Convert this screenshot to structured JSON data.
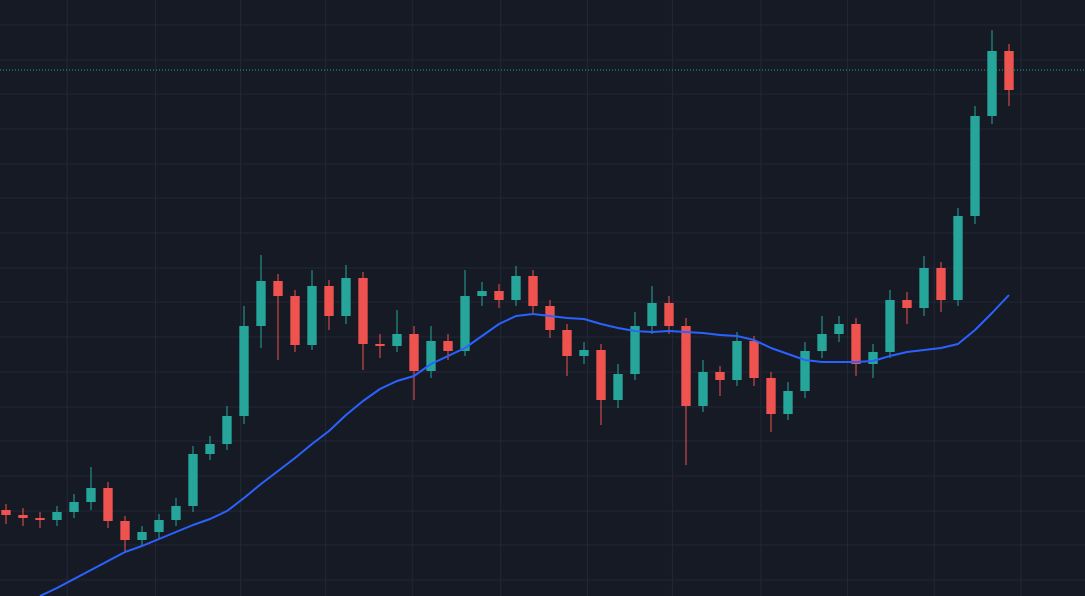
{
  "chart_data": {
    "type": "candlestick",
    "background": "#161a25",
    "grid": true,
    "grid_color": "#232735",
    "up_color": "#26a69a",
    "down_color": "#ef5350",
    "xlim": [
      -0.353,
      63.47
    ],
    "ylim": [
      0,
      596
    ],
    "xticks": [
      3.6,
      8.8,
      13.8,
      18.8,
      23.9,
      29.1,
      34.2,
      39.2,
      44.4,
      49.5,
      54.6,
      59.7
    ],
    "yticks": [
      571,
      536,
      502,
      467,
      432,
      398,
      363,
      328,
      294,
      259,
      224,
      189,
      155,
      120,
      85,
      51,
      16
    ],
    "open": [
      86,
      81,
      78,
      76,
      84,
      94,
      108,
      75,
      56,
      64,
      76,
      90,
      142,
      152,
      180,
      270,
      315,
      300,
      251,
      310,
      280,
      318,
      252,
      250,
      262,
      225,
      255,
      245,
      300,
      305,
      296,
      320,
      290,
      266,
      240,
      246,
      196,
      222,
      270,
      293,
      270,
      190,
      224,
      216,
      255,
      218,
      182,
      205,
      245,
      262,
      272,
      232,
      244,
      296,
      288,
      328,
      296,
      380,
      480,
      545
    ],
    "high": [
      92,
      88,
      84,
      90,
      102,
      129,
      114,
      80,
      70,
      82,
      98,
      150,
      160,
      190,
      290,
      341,
      322,
      306,
      326,
      316,
      331,
      324,
      262,
      286,
      270,
      270,
      262,
      326,
      314,
      312,
      330,
      326,
      296,
      272,
      254,
      252,
      232,
      284,
      310,
      300,
      278,
      236,
      230,
      264,
      260,
      224,
      214,
      254,
      280,
      280,
      278,
      252,
      306,
      304,
      340,
      334,
      388,
      490,
      566,
      552
    ],
    "low": [
      72,
      70,
      68,
      70,
      78,
      86,
      68,
      44,
      50,
      58,
      70,
      84,
      136,
      146,
      172,
      248,
      236,
      244,
      246,
      266,
      272,
      226,
      238,
      244,
      196,
      218,
      236,
      240,
      290,
      288,
      290,
      282,
      258,
      220,
      232,
      171,
      188,
      216,
      262,
      262,
      131,
      184,
      200,
      210,
      210,
      164,
      176,
      198,
      238,
      254,
      220,
      218,
      238,
      272,
      280,
      284,
      290,
      372,
      472,
      490
    ],
    "close": [
      81,
      78,
      76,
      84,
      94,
      108,
      75,
      56,
      64,
      76,
      90,
      142,
      152,
      180,
      270,
      315,
      300,
      251,
      310,
      280,
      318,
      252,
      250,
      262,
      225,
      255,
      245,
      300,
      305,
      296,
      320,
      290,
      266,
      240,
      246,
      196,
      222,
      270,
      293,
      270,
      190,
      224,
      216,
      255,
      218,
      182,
      205,
      245,
      262,
      272,
      232,
      244,
      296,
      288,
      328,
      296,
      380,
      480,
      545,
      506
    ],
    "moving_average": {
      "color": "#2962ff",
      "values": [
        null,
        null,
        0,
        8,
        17,
        26,
        35,
        44,
        50,
        57,
        64,
        71,
        77,
        85,
        98,
        112,
        125,
        138,
        152,
        165,
        181,
        195,
        207,
        215,
        220,
        232,
        240,
        248,
        260,
        272,
        280,
        282,
        280,
        278,
        277,
        272,
        268,
        265,
        264,
        265,
        264,
        263,
        261,
        260,
        256,
        248,
        242,
        236,
        234,
        234,
        234,
        235,
        240,
        244,
        246,
        248,
        252,
        266,
        283,
        301
      ]
    },
    "price_line": {
      "value": 526,
      "color": "#26a69a"
    }
  }
}
